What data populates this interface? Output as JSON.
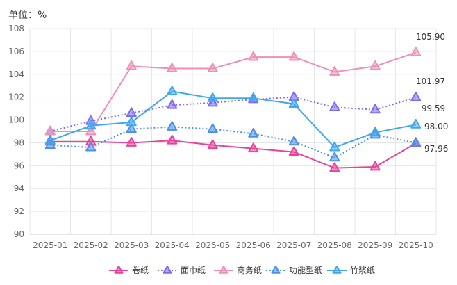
{
  "chart_data": {
    "type": "line",
    "unit_label": "单位：%",
    "x": [
      "2025-01",
      "2025-02",
      "2025-03",
      "2025-04",
      "2025-05",
      "2025-06",
      "2025-07",
      "2025-08",
      "2025-09",
      "2025-10"
    ],
    "ylim": [
      90,
      108
    ],
    "yticks": [
      90,
      92,
      94,
      96,
      98,
      100,
      102,
      104,
      106,
      108
    ],
    "grid": true,
    "legend_position": "bottom-center",
    "series": [
      {
        "name": "卷纸",
        "color": "#e8439a",
        "dash": "solid",
        "values": [
          98.1,
          98.1,
          98.0,
          98.2,
          97.8,
          97.5,
          97.2,
          95.8,
          95.9,
          97.96
        ],
        "end_label": "97.96"
      },
      {
        "name": "面巾纸",
        "color": "#7b6cf0",
        "dash": "dotted",
        "values": [
          99.0,
          99.9,
          100.6,
          101.3,
          101.5,
          101.8,
          102.0,
          101.1,
          100.9,
          101.97
        ],
        "end_label": "101.97"
      },
      {
        "name": "商务纸",
        "color": "#ee8fb9",
        "dash": "solid",
        "values": [
          99.0,
          99.0,
          104.7,
          104.5,
          104.5,
          105.5,
          105.5,
          104.2,
          104.7,
          105.9
        ],
        "end_label": "105.90"
      },
      {
        "name": "功能型纸",
        "color": "#4a8fe8",
        "dash": "dotted",
        "values": [
          97.8,
          97.6,
          99.2,
          99.4,
          99.2,
          98.8,
          98.1,
          96.7,
          98.7,
          98.0
        ],
        "end_label": "98.00"
      },
      {
        "name": "竹浆纸",
        "color": "#3fa7ee",
        "dash": "solid",
        "values": [
          98.2,
          99.5,
          99.8,
          102.5,
          101.9,
          101.9,
          101.4,
          97.6,
          98.9,
          99.59
        ],
        "end_label": "99.59"
      }
    ]
  }
}
